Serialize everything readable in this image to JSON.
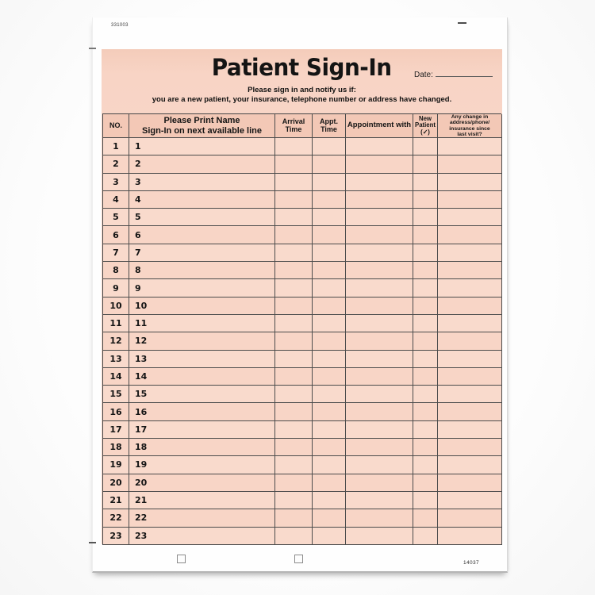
{
  "sheet": {
    "top_code": "331003",
    "bottom_code": "14037"
  },
  "form": {
    "title": "Patient Sign-In",
    "date_label": "Date:",
    "instructions_line1": "Please sign in and notify us if:",
    "instructions_line2": "you are a new patient, your insurance, telephone number or address have changed.",
    "table": {
      "headers": {
        "no": "NO.",
        "name_line1": "Please Print Name",
        "name_line2": "Sign-In on next available line",
        "arrival_line1": "Arrival",
        "arrival_line2": "Time",
        "appt_line1": "Appt.",
        "appt_line2": "Time",
        "appointment_with": "Appointment with",
        "new_patient_line1": "New",
        "new_patient_line2": "Patient",
        "new_patient_line3": "(✓)",
        "change_line1": "Any change in",
        "change_line2": "address/phone/",
        "change_line3": "insurance since",
        "change_line4": "last visit?"
      },
      "row_numbers": [
        "1",
        "2",
        "3",
        "4",
        "5",
        "6",
        "7",
        "8",
        "9",
        "10",
        "11",
        "12",
        "13",
        "14",
        "15",
        "16",
        "17",
        "18",
        "19",
        "20",
        "21",
        "22",
        "23"
      ]
    },
    "colors": {
      "paper_salmon": "#f8d5c6",
      "header_fill": "#f3c8b6",
      "grid_line": "#4c4c4c",
      "sheet_white": "#fefefe"
    }
  }
}
